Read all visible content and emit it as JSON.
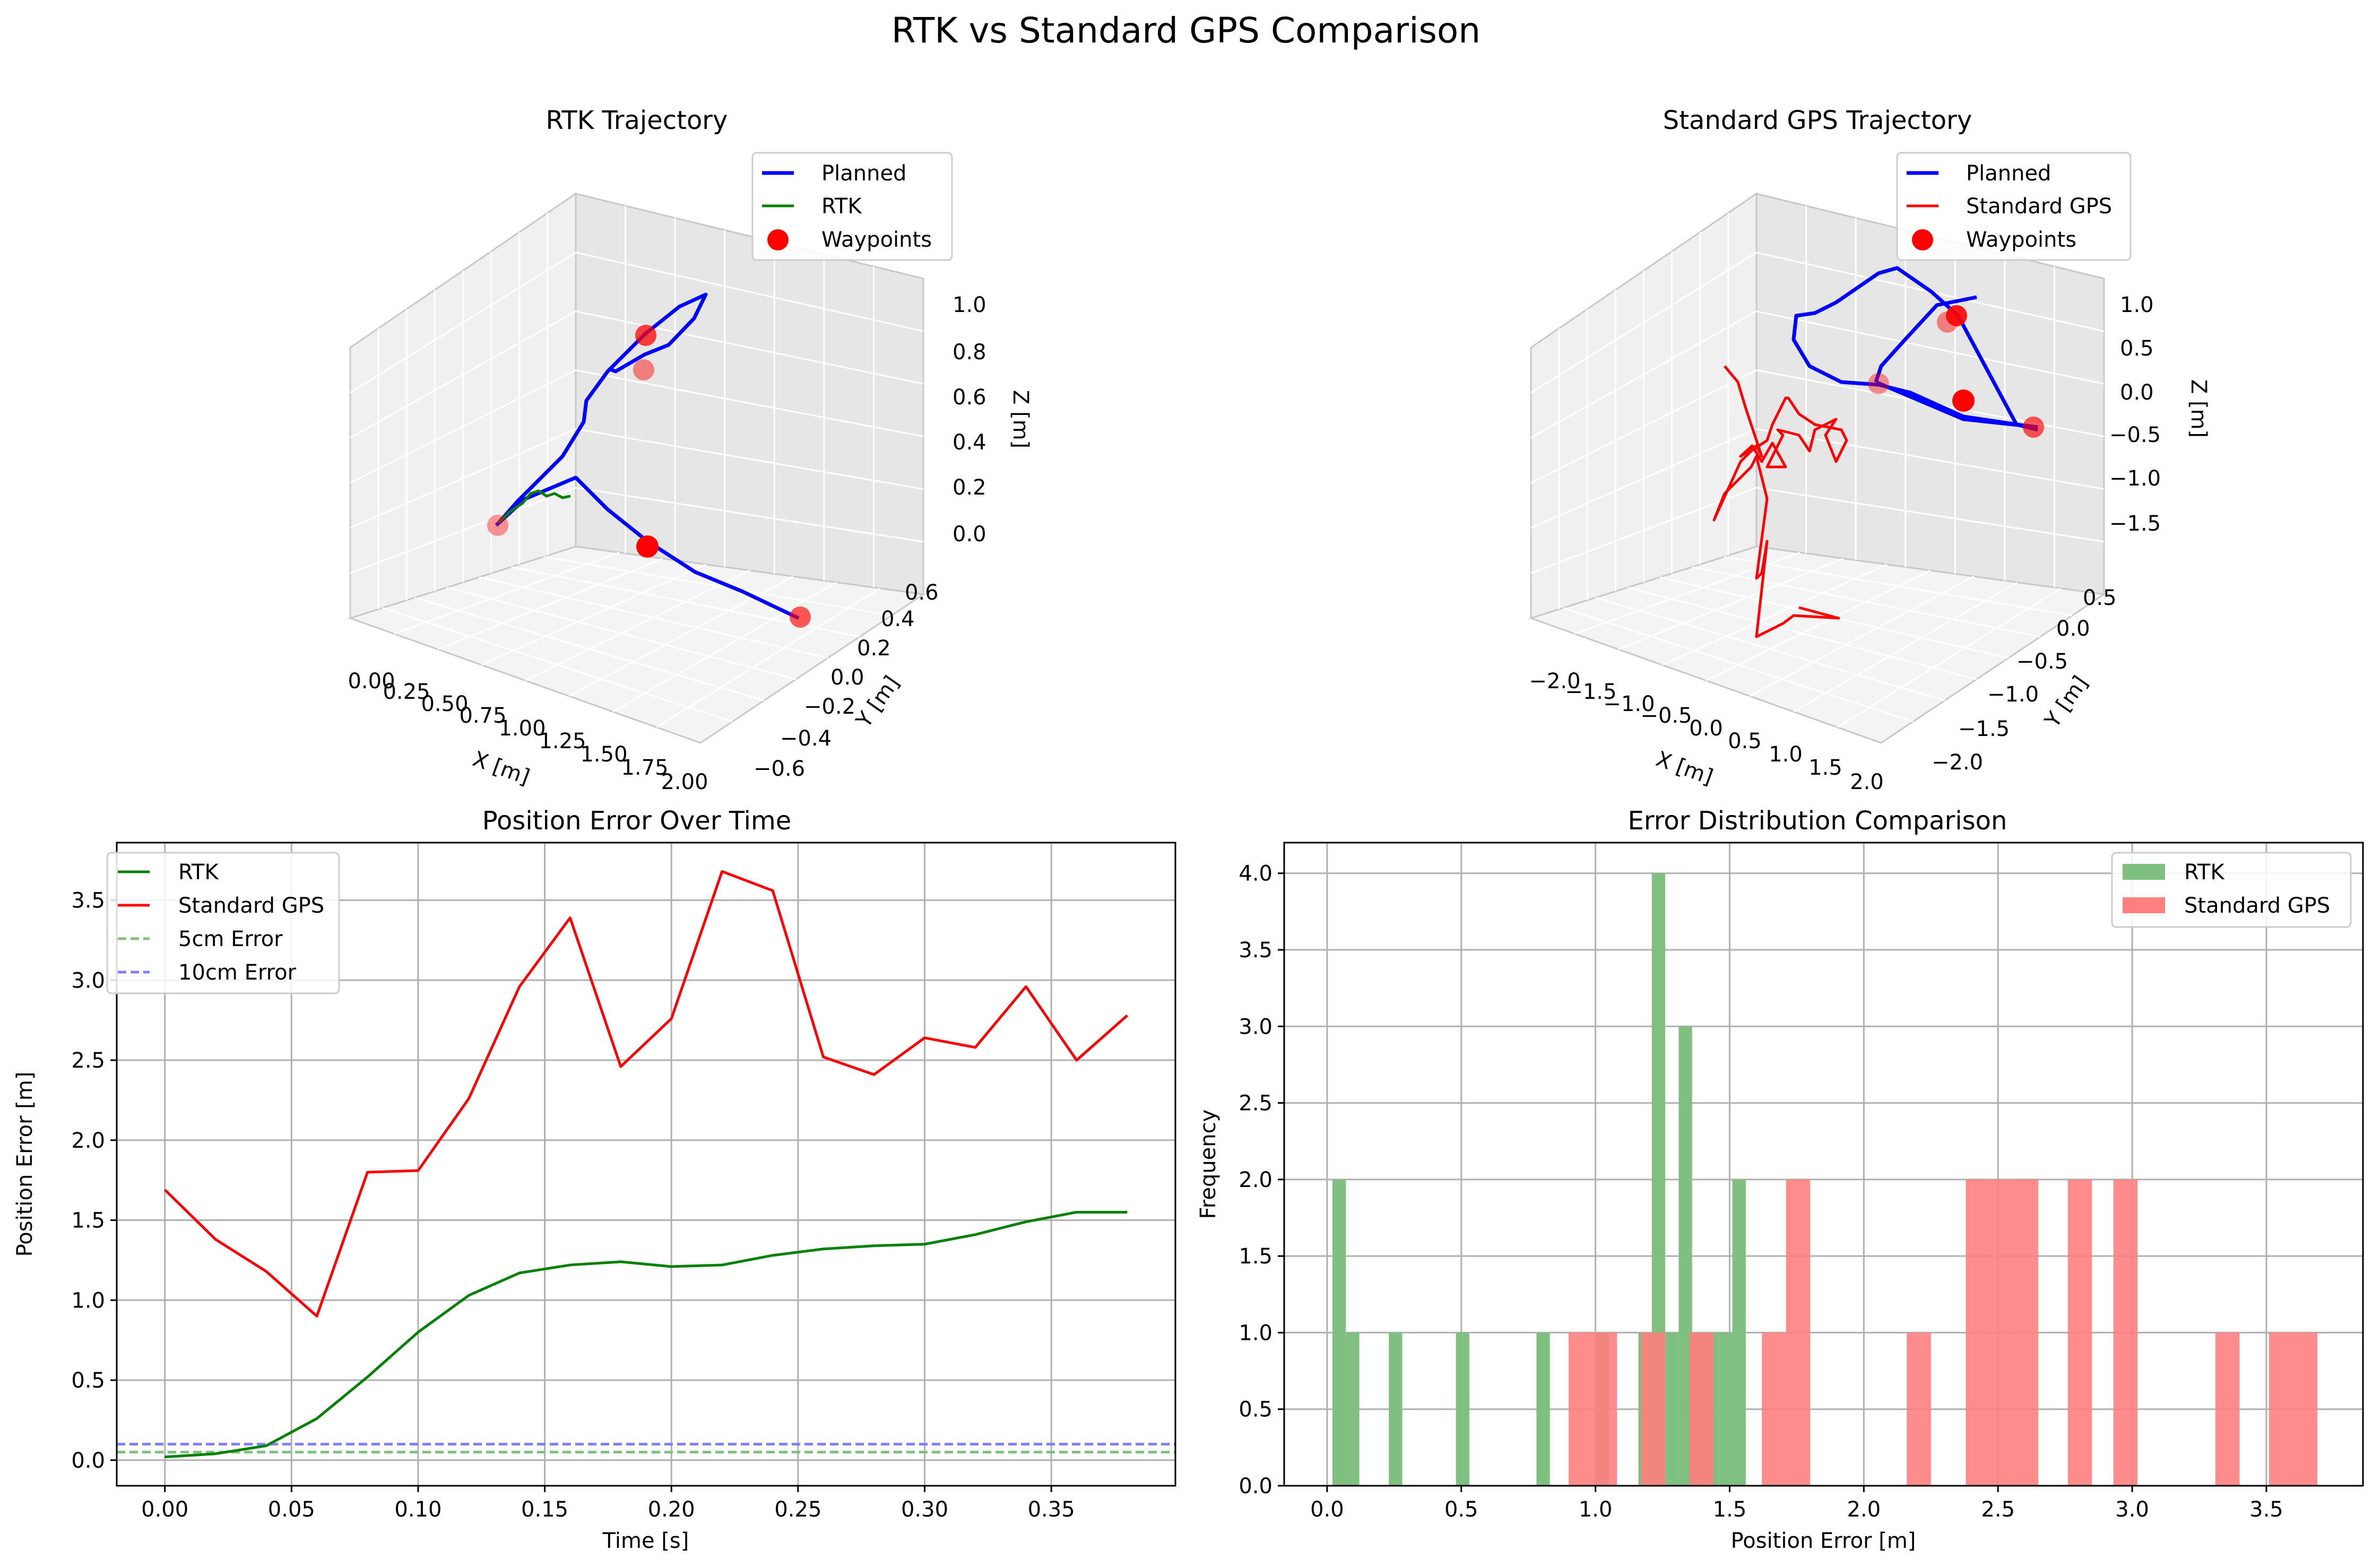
{
  "figure": {
    "title": "RTK vs Standard GPS Comparison"
  },
  "colors": {
    "planned": "#0000ff",
    "rtk": "#008000",
    "gps": "#ff0000",
    "waypoint": "#ff0000",
    "rtk_hist": "#7fbf7f",
    "gps_hist": "#ff7f7f",
    "hline_5cm": "#7fbf7f",
    "hline_10cm": "#7f7fff",
    "grid": "#b0b0b0"
  },
  "chart_data": [
    {
      "id": "rtk_trajectory",
      "type": "line3d",
      "title": "RTK Trajectory",
      "xlabel": "X [m]",
      "ylabel": "Y [m]",
      "zlabel": "Z [m]",
      "xticks": [
        "0.00",
        "0.25",
        "0.50",
        "0.75",
        "1.00",
        "1.25",
        "1.50",
        "1.75",
        "2.00"
      ],
      "yticks": [
        "−0.6",
        "−0.4",
        "−0.2",
        "0.0",
        "0.2",
        "0.4",
        "0.6"
      ],
      "zticks": [
        "0.0",
        "0.2",
        "0.4",
        "0.6",
        "0.8",
        "1.0"
      ],
      "legend": {
        "position": "top-right",
        "entries": [
          "Planned",
          "RTK",
          "Waypoints"
        ]
      },
      "series": [
        {
          "name": "Planned",
          "kind": "line"
        },
        {
          "name": "RTK",
          "kind": "line"
        },
        {
          "name": "Waypoints",
          "kind": "points"
        }
      ]
    },
    {
      "id": "gps_trajectory",
      "type": "line3d",
      "title": "Standard GPS Trajectory",
      "xlabel": "X [m]",
      "ylabel": "Y [m]",
      "zlabel": "Z [m]",
      "xticks": [
        "−2.0",
        "−1.5",
        "−1.0",
        "−0.5",
        "0.0",
        "0.5",
        "1.0",
        "1.5",
        "2.0"
      ],
      "yticks": [
        "−2.0",
        "−1.5",
        "−1.0",
        "−0.5",
        "0.0",
        "0.5"
      ],
      "zticks": [
        "−1.5",
        "−1.0",
        "−0.5",
        "0.0",
        "0.5",
        "1.0"
      ],
      "legend": {
        "position": "top-right",
        "entries": [
          "Planned",
          "Standard GPS",
          "Waypoints"
        ]
      },
      "series": [
        {
          "name": "Planned",
          "kind": "line"
        },
        {
          "name": "Standard GPS",
          "kind": "line"
        },
        {
          "name": "Waypoints",
          "kind": "points"
        }
      ]
    },
    {
      "id": "position_error",
      "type": "line",
      "title": "Position Error Over Time",
      "xlabel": "Time [s]",
      "ylabel": "Position Error [m]",
      "xlim": [
        -0.019,
        0.399
      ],
      "ylim": [
        -0.16,
        3.86
      ],
      "xticks": [
        0.0,
        0.05,
        0.1,
        0.15,
        0.2,
        0.25,
        0.3,
        0.35
      ],
      "xtick_labels": [
        "0.00",
        "0.05",
        "0.10",
        "0.15",
        "0.20",
        "0.25",
        "0.30",
        "0.35"
      ],
      "yticks": [
        0.0,
        0.5,
        1.0,
        1.5,
        2.0,
        2.5,
        3.0,
        3.5
      ],
      "ytick_labels": [
        "0.0",
        "0.5",
        "1.0",
        "1.5",
        "2.0",
        "2.5",
        "3.0",
        "3.5"
      ],
      "grid": true,
      "legend": {
        "position": "top-left",
        "entries": [
          "RTK",
          "Standard GPS",
          "5cm Error",
          "10cm Error"
        ]
      },
      "x": [
        0.0,
        0.02,
        0.04,
        0.06,
        0.08,
        0.1,
        0.12,
        0.14,
        0.16,
        0.18,
        0.2,
        0.22,
        0.24,
        0.26,
        0.28,
        0.3,
        0.32,
        0.34,
        0.36,
        0.38
      ],
      "series": [
        {
          "name": "RTK",
          "values": [
            0.02,
            0.04,
            0.09,
            0.26,
            0.52,
            0.8,
            1.03,
            1.17,
            1.22,
            1.24,
            1.21,
            1.22,
            1.28,
            1.32,
            1.34,
            1.35,
            1.41,
            1.49,
            1.55,
            1.55
          ]
        },
        {
          "name": "Standard GPS",
          "values": [
            1.69,
            1.38,
            1.18,
            0.9,
            1.8,
            1.81,
            2.26,
            2.96,
            3.39,
            2.46,
            2.76,
            3.68,
            3.56,
            2.52,
            2.41,
            2.64,
            2.58,
            2.96,
            2.5,
            2.78
          ]
        }
      ],
      "hlines": [
        {
          "name": "5cm Error",
          "value": 0.05
        },
        {
          "name": "10cm Error",
          "value": 0.1
        }
      ]
    },
    {
      "id": "error_distribution",
      "type": "bar",
      "title": "Error Distribution Comparison",
      "xlabel": "Position Error [m]",
      "ylabel": "Frequency",
      "xlim": [
        -0.16,
        3.86
      ],
      "ylim": [
        0,
        4.2
      ],
      "xticks": [
        0.0,
        0.5,
        1.0,
        1.5,
        2.0,
        2.5,
        3.0,
        3.5
      ],
      "xtick_labels": [
        "0.0",
        "0.5",
        "1.0",
        "1.5",
        "2.0",
        "2.5",
        "3.0",
        "3.5"
      ],
      "yticks": [
        0.0,
        0.5,
        1.0,
        1.5,
        2.0,
        2.5,
        3.0,
        3.5,
        4.0
      ],
      "ytick_labels": [
        "0.0",
        "0.5",
        "1.0",
        "1.5",
        "2.0",
        "2.5",
        "3.0",
        "3.5",
        "4.0"
      ],
      "grid": true,
      "legend": {
        "position": "top-right",
        "entries": [
          "RTK",
          "Standard GPS"
        ]
      },
      "series": [
        {
          "name": "RTK",
          "bins": [
            [
              0.02,
              0.07,
              2
            ],
            [
              0.07,
              0.12,
              1
            ],
            [
              0.23,
              0.28,
              1
            ],
            [
              0.48,
              0.53,
              1
            ],
            [
              0.78,
              0.83,
              1
            ],
            [
              1.0,
              1.05,
              1
            ],
            [
              1.16,
              1.21,
              1
            ],
            [
              1.21,
              1.26,
              4
            ],
            [
              1.26,
              1.31,
              1
            ],
            [
              1.31,
              1.36,
              3
            ],
            [
              1.36,
              1.41,
              1
            ],
            [
              1.41,
              1.46,
              1
            ],
            [
              1.46,
              1.51,
              1
            ],
            [
              1.51,
              1.56,
              2
            ]
          ]
        },
        {
          "name": "Standard GPS",
          "bins": [
            [
              0.9,
              0.99,
              1
            ],
            [
              0.99,
              1.08,
              1
            ],
            [
              1.17,
              1.26,
              1
            ],
            [
              1.35,
              1.44,
              1
            ],
            [
              1.62,
              1.71,
              1
            ],
            [
              1.71,
              1.8,
              2
            ],
            [
              2.16,
              2.25,
              1
            ],
            [
              2.38,
              2.47,
              2
            ],
            [
              2.47,
              2.56,
              2
            ],
            [
              2.56,
              2.65,
              2
            ],
            [
              2.76,
              2.85,
              2
            ],
            [
              2.93,
              3.02,
              2
            ],
            [
              3.31,
              3.4,
              1
            ],
            [
              3.51,
              3.6,
              1
            ],
            [
              3.6,
              3.69,
              1
            ]
          ]
        }
      ]
    }
  ]
}
